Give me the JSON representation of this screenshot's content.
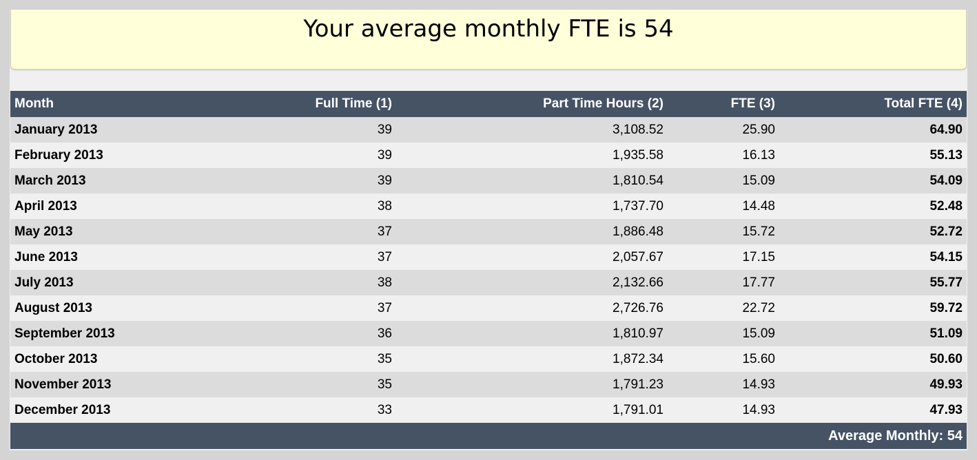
{
  "banner": {
    "title": "Your average monthly FTE is 54"
  },
  "table": {
    "headers": {
      "month": "Month",
      "full_time": "Full Time (1)",
      "part_time_hours": "Part Time Hours (2)",
      "fte": "FTE (3)",
      "total_fte": "Total FTE (4)"
    },
    "rows": [
      {
        "month": "January 2013",
        "full_time": "39",
        "part_time_hours": "3,108.52",
        "fte": "25.90",
        "total_fte": "64.90"
      },
      {
        "month": "February 2013",
        "full_time": "39",
        "part_time_hours": "1,935.58",
        "fte": "16.13",
        "total_fte": "55.13"
      },
      {
        "month": "March 2013",
        "full_time": "39",
        "part_time_hours": "1,810.54",
        "fte": "15.09",
        "total_fte": "54.09"
      },
      {
        "month": "April 2013",
        "full_time": "38",
        "part_time_hours": "1,737.70",
        "fte": "14.48",
        "total_fte": "52.48"
      },
      {
        "month": "May 2013",
        "full_time": "37",
        "part_time_hours": "1,886.48",
        "fte": "15.72",
        "total_fte": "52.72"
      },
      {
        "month": "June 2013",
        "full_time": "37",
        "part_time_hours": "2,057.67",
        "fte": "17.15",
        "total_fte": "54.15"
      },
      {
        "month": "July 2013",
        "full_time": "38",
        "part_time_hours": "2,132.66",
        "fte": "17.77",
        "total_fte": "55.77"
      },
      {
        "month": "August 2013",
        "full_time": "37",
        "part_time_hours": "2,726.76",
        "fte": "22.72",
        "total_fte": "59.72"
      },
      {
        "month": "September 2013",
        "full_time": "36",
        "part_time_hours": "1,810.97",
        "fte": "15.09",
        "total_fte": "51.09"
      },
      {
        "month": "October 2013",
        "full_time": "35",
        "part_time_hours": "1,872.34",
        "fte": "15.60",
        "total_fte": "50.60"
      },
      {
        "month": "November 2013",
        "full_time": "35",
        "part_time_hours": "1,791.23",
        "fte": "14.93",
        "total_fte": "49.93"
      },
      {
        "month": "December 2013",
        "full_time": "33",
        "part_time_hours": "1,791.01",
        "fte": "14.93",
        "total_fte": "47.93"
      }
    ],
    "footer": "Average Monthly: 54"
  },
  "colors": {
    "header_bg": "#465365",
    "banner_bg": "#ffffd9",
    "row_odd": "#dcdcdc",
    "row_even": "#f0f0f0"
  }
}
